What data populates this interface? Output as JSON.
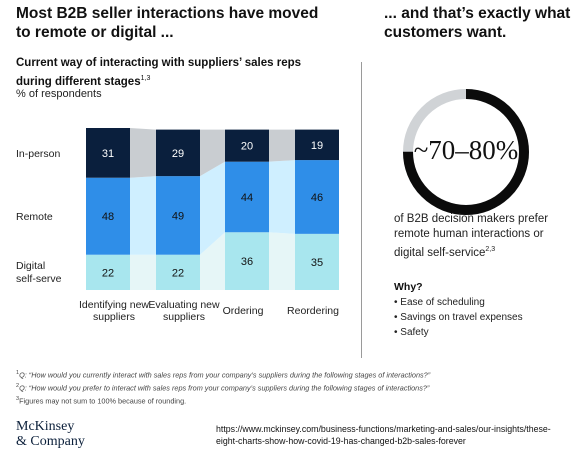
{
  "left_title": "Most B2B seller interactions have moved to remote or digital ...",
  "right_title": "... and that’s exactly what customers want.",
  "chart_title": "Current way of interacting with suppliers’ sales reps during different stages",
  "chart_title_sup": "1,3",
  "chart_unit": "% of respondents",
  "chart_data": {
    "type": "bar",
    "stacked": true,
    "categories": [
      "Identifying new suppliers",
      "Evaluating new suppliers",
      "Ordering",
      "Reordering"
    ],
    "series": [
      {
        "name": "Digital self-serve",
        "values": [
          22,
          22,
          36,
          35
        ]
      },
      {
        "name": "Remote",
        "values": [
          48,
          49,
          44,
          46
        ]
      },
      {
        "name": "In-person",
        "values": [
          31,
          29,
          20,
          19
        ]
      }
    ],
    "row_labels": [
      "In-person",
      "Remote",
      "Digital self-serve"
    ],
    "colors": {
      "In-person": "#0a1f3d",
      "Remote": "#2f8ee8",
      "Digital self-serve": "#a8e6ee"
    },
    "band_colors": {
      "In-person": "#c9cdd1",
      "Remote": "#cfefff",
      "Digital self-serve": "#e6f6f7"
    },
    "ylim": [
      0,
      101
    ]
  },
  "ring": {
    "value_text": "~70–80%",
    "fill_fraction": 0.75
  },
  "stat_text": "of B2B decision makers prefer remote human interactions or digital self-service",
  "stat_sup": "2,3",
  "why_label": "Why?",
  "why_items": [
    "Ease of scheduling",
    "Savings on travel expenses",
    "Safety"
  ],
  "notes": [
    {
      "sup": "1",
      "text": "Q: “How would you currently interact with sales reps from your company’s suppliers during the following stages of interactions?”"
    },
    {
      "sup": "2",
      "text": "Q: “How would you prefer to interact with sales reps from your company’s suppliers during the following stages of interactions?”"
    },
    {
      "sup": "3",
      "text": "Figures may not sum to 100% because of rounding."
    }
  ],
  "logo_line1": "McKinsey",
  "logo_line2": "& Company",
  "url_line1": "https://www.mckinsey.com/business-functions/marketing-and-sales/our-insights/these-",
  "url_line2": "eight-charts-show-how-covid-19-has-changed-b2b-sales-forever"
}
